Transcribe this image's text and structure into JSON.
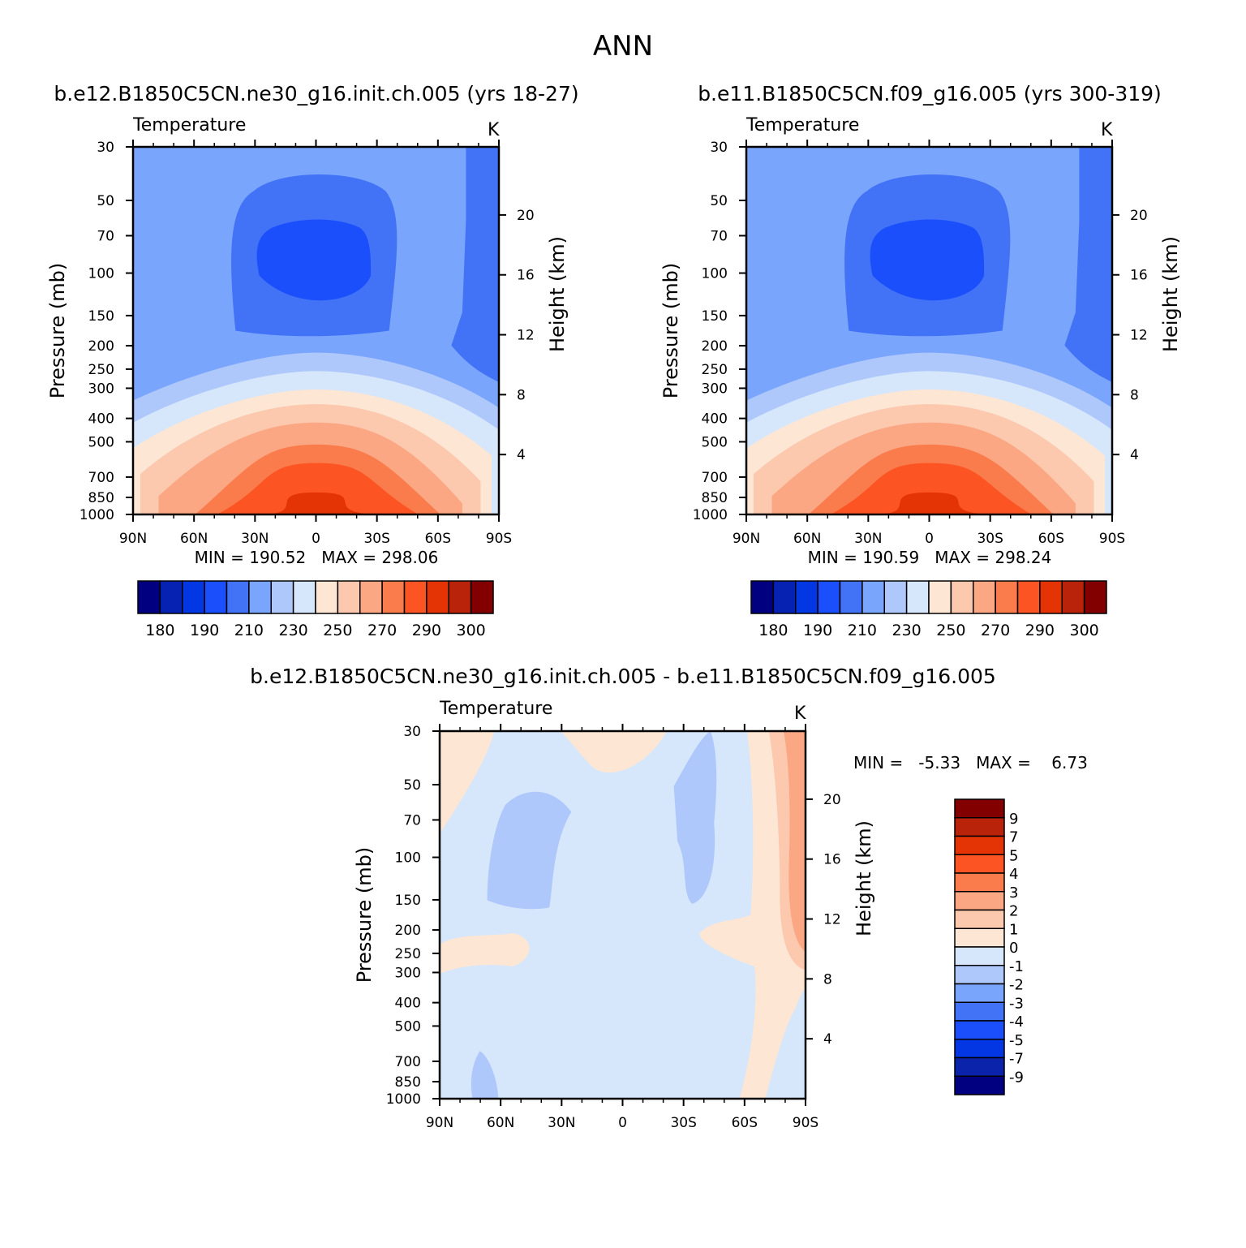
{
  "figure": {
    "title": "ANN"
  },
  "colors": {
    "temperature_levels": [
      "#000080",
      "#0522b3",
      "#0437e4",
      "#1b4ffb",
      "#4273f7",
      "#7aa5fc",
      "#afc8fc",
      "#d6e7fc",
      "#fde6d4",
      "#fcc8ae",
      "#fba783",
      "#fa7c4d",
      "#fc5523",
      "#e43406",
      "#b8230a",
      "#820000"
    ],
    "difference_levels": [
      "#000080",
      "#0a23aa",
      "#0437e4",
      "#1b4ffb",
      "#4273f7",
      "#7aa5fc",
      "#afc8fc",
      "#d6e7fc",
      "#fde6d4",
      "#fcc8ae",
      "#fba783",
      "#fa7c4d",
      "#fc5523",
      "#e43406",
      "#b8230a",
      "#820000"
    ]
  },
  "chart_data": [
    {
      "type": "heatmap",
      "title": "b.e12.B1850C5CN.ne30_g16.init.ch.005 (yrs 18-27)",
      "variable_label": "Temperature",
      "units": "K",
      "ylabel": "Pressure (mb)",
      "ylabel_right": "Height (km)",
      "x_ticks": [
        "90N",
        "60N",
        "30N",
        "0",
        "30S",
        "60S",
        "90S"
      ],
      "y_ticks": [
        "30",
        "50",
        "70",
        "100",
        "150",
        "200",
        "250",
        "300",
        "400",
        "500",
        "700",
        "850",
        "1000"
      ],
      "y_right_ticks": [
        "20",
        "16",
        "12",
        "8",
        "4"
      ],
      "stats_text": "MIN = 190.52   MAX = 298.06",
      "min": 190.52,
      "max": 298.06,
      "colorbar_labels": [
        "180",
        "190",
        "210",
        "230",
        "250",
        "270",
        "290",
        "300"
      ]
    },
    {
      "type": "heatmap",
      "title": "b.e11.B1850C5CN.f09_g16.005 (yrs 300-319)",
      "variable_label": "Temperature",
      "units": "K",
      "ylabel": "Pressure (mb)",
      "ylabel_right": "Height (km)",
      "x_ticks": [
        "90N",
        "60N",
        "30N",
        "0",
        "30S",
        "60S",
        "90S"
      ],
      "y_ticks": [
        "30",
        "50",
        "70",
        "100",
        "150",
        "200",
        "250",
        "300",
        "400",
        "500",
        "700",
        "850",
        "1000"
      ],
      "y_right_ticks": [
        "20",
        "16",
        "12",
        "8",
        "4"
      ],
      "stats_text": "MIN = 190.59   MAX = 298.24",
      "min": 190.59,
      "max": 298.24,
      "colorbar_labels": [
        "180",
        "190",
        "210",
        "230",
        "250",
        "270",
        "290",
        "300"
      ]
    },
    {
      "type": "heatmap",
      "title": "b.e12.B1850C5CN.ne30_g16.init.ch.005 - b.e11.B1850C5CN.f09_g16.005",
      "variable_label": "Temperature",
      "units": "K",
      "ylabel": "Pressure (mb)",
      "ylabel_right": "Height (km)",
      "x_ticks": [
        "90N",
        "60N",
        "30N",
        "0",
        "30S",
        "60S",
        "90S"
      ],
      "y_ticks": [
        "30",
        "50",
        "70",
        "100",
        "150",
        "200",
        "250",
        "300",
        "400",
        "500",
        "700",
        "850",
        "1000"
      ],
      "y_right_ticks": [
        "20",
        "16",
        "12",
        "8",
        "4"
      ],
      "stats_text": "MIN =   -5.33   MAX =    6.73",
      "min": -5.33,
      "max": 6.73,
      "colorbar_labels": [
        "9",
        "7",
        "5",
        "4",
        "3",
        "2",
        "1",
        "0",
        "-1",
        "-2",
        "-3",
        "-4",
        "-5",
        "-7",
        "-9"
      ]
    }
  ]
}
